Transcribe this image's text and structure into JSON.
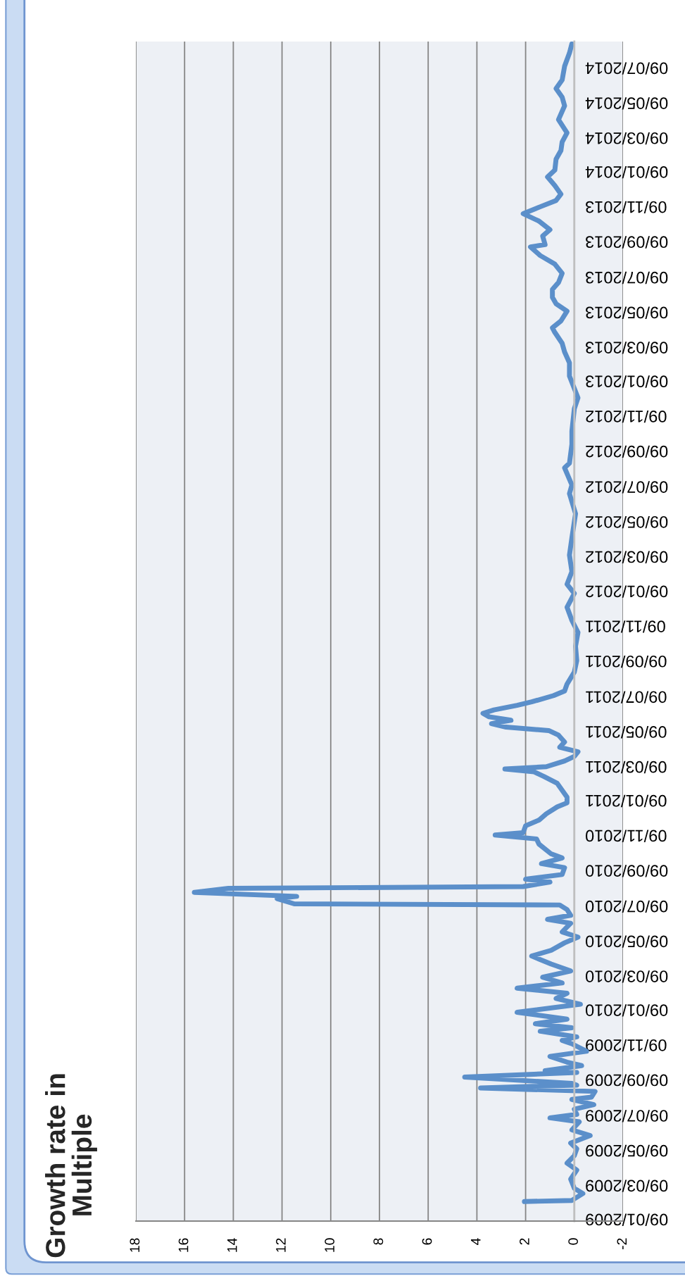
{
  "chart_data": {
    "type": "line",
    "title": "Growth rate in\nMultiple",
    "orientation": "horizontal",
    "color": "#5b8fca",
    "line_style": "solid",
    "grid": "x",
    "xlim": [
      18,
      -2
    ],
    "xticks": [
      18,
      16,
      14,
      12,
      10,
      8,
      6,
      4,
      2,
      0,
      -2
    ],
    "ylim": [
      "2009-01-04",
      "2014-08-22"
    ],
    "yticks": [
      {
        "value": "2009-01-09",
        "label": "09/01/2009"
      },
      {
        "value": "2009-03-09",
        "label": "09/03/2009"
      },
      {
        "value": "2009-05-09",
        "label": "09/05/2009"
      },
      {
        "value": "2009-07-09",
        "label": "09/07/2009"
      },
      {
        "value": "2009-09-09",
        "label": "09/09/2009"
      },
      {
        "value": "2009-11-09",
        "label": "09/11/2009"
      },
      {
        "value": "2010-01-09",
        "label": "09/01/2010"
      },
      {
        "value": "2010-03-09",
        "label": "09/03/2010"
      },
      {
        "value": "2010-05-09",
        "label": "09/05/2010"
      },
      {
        "value": "2010-07-09",
        "label": "09/07/2010"
      },
      {
        "value": "2010-09-09",
        "label": "09/09/2010"
      },
      {
        "value": "2010-11-09",
        "label": "09/11/2010"
      },
      {
        "value": "2011-01-09",
        "label": "09/01/2011"
      },
      {
        "value": "2011-03-09",
        "label": "09/03/2011"
      },
      {
        "value": "2011-05-09",
        "label": "09/05/2011"
      },
      {
        "value": "2011-07-09",
        "label": "09/07/2011"
      },
      {
        "value": "2011-09-09",
        "label": "09/09/2011"
      },
      {
        "value": "2011-11-09",
        "label": "09/11/2011"
      },
      {
        "value": "2012-01-09",
        "label": "09/01/2012"
      },
      {
        "value": "2012-03-09",
        "label": "09/03/2012"
      },
      {
        "value": "2012-05-09",
        "label": "09/05/2012"
      },
      {
        "value": "2012-07-09",
        "label": "09/07/2012"
      },
      {
        "value": "2012-09-09",
        "label": "09/09/2012"
      },
      {
        "value": "2012-11-09",
        "label": "09/11/2012"
      },
      {
        "value": "2013-01-09",
        "label": "09/01/2013"
      },
      {
        "value": "2013-03-09",
        "label": "09/03/2013"
      },
      {
        "value": "2013-05-09",
        "label": "09/05/2013"
      },
      {
        "value": "2013-07-09",
        "label": "09/07/2013"
      },
      {
        "value": "2013-09-09",
        "label": "09/09/2013"
      },
      {
        "value": "2013-11-09",
        "label": "09/11/2013"
      },
      {
        "value": "2014-01-09",
        "label": "09/01/2014"
      },
      {
        "value": "2014-03-09",
        "label": "09/03/2014"
      },
      {
        "value": "2014-05-09",
        "label": "09/05/2014"
      },
      {
        "value": "2014-07-09",
        "label": "09/07/2014"
      }
    ],
    "x": [
      "2009-02-07",
      "2009-02-09",
      "2009-02-21",
      "2009-03-02",
      "2009-03-18",
      "2009-04-03",
      "2009-04-15",
      "2009-04-28",
      "2009-05-10",
      "2009-05-20",
      "2009-06-02",
      "2009-06-12",
      "2009-06-26",
      "2009-07-03",
      "2009-07-09",
      "2009-07-18",
      "2009-07-26",
      "2009-08-04",
      "2009-08-08",
      "2009-08-18",
      "2009-08-24",
      "2009-08-29",
      "2009-09-01",
      "2009-09-12",
      "2009-09-20",
      "2009-09-23",
      "2009-10-02",
      "2009-10-08",
      "2009-10-18",
      "2009-10-27",
      "2009-11-09",
      "2009-11-15",
      "2009-11-21",
      "2009-12-01",
      "2009-12-07",
      "2009-12-14",
      "2009-12-22",
      "2010-01-03",
      "2010-01-17",
      "2010-01-27",
      "2010-02-05",
      "2010-02-14",
      "2010-02-23",
      "2010-03-05",
      "2010-03-16",
      "2010-03-28",
      "2010-04-11",
      "2010-04-21",
      "2010-05-04",
      "2010-05-14",
      "2010-05-23",
      "2010-06-07",
      "2010-06-14",
      "2010-06-21",
      "2010-07-01",
      "2010-07-09",
      "2010-07-11",
      "2010-07-20",
      "2010-07-24",
      "2010-07-31",
      "2010-08-07",
      "2010-08-10",
      "2010-08-18",
      "2010-08-23",
      "2010-08-31",
      "2010-09-12",
      "2010-09-19",
      "2010-09-29",
      "2010-10-06",
      "2010-10-23",
      "2010-11-01",
      "2010-11-08",
      "2010-11-12",
      "2010-11-24",
      "2010-12-04",
      "2010-12-15",
      "2010-12-27",
      "2011-01-03",
      "2011-01-13",
      "2011-01-25",
      "2011-02-06",
      "2011-02-18",
      "2011-02-26",
      "2011-03-03",
      "2011-03-07",
      "2011-03-17",
      "2011-03-25",
      "2011-04-02",
      "2011-04-10",
      "2011-04-19",
      "2011-05-01",
      "2011-05-09",
      "2011-05-15",
      "2011-05-21",
      "2011-05-27",
      "2011-06-02",
      "2011-06-08",
      "2011-06-14",
      "2011-06-22",
      "2011-06-28",
      "2011-07-09",
      "2011-07-17",
      "2011-07-29",
      "2011-08-19",
      "2011-09-08",
      "2011-10-03",
      "2011-10-27",
      "2011-11-17",
      "2011-12-10",
      "2012-01-03",
      "2012-01-19",
      "2012-02-10",
      "2012-03-10",
      "2012-04-09",
      "2012-05-21",
      "2012-06-25",
      "2012-07-10",
      "2012-08-09",
      "2012-08-17",
      "2012-09-19",
      "2012-10-12",
      "2012-11-20",
      "2012-12-09",
      "2013-01-16",
      "2013-02-08",
      "2013-02-27",
      "2013-03-14",
      "2013-04-02",
      "2013-04-10",
      "2013-04-22",
      "2013-05-09",
      "2013-05-22",
      "2013-06-02",
      "2013-06-16",
      "2013-06-28",
      "2013-07-14",
      "2013-07-30",
      "2013-08-14",
      "2013-08-29",
      "2013-09-02",
      "2013-09-17",
      "2013-09-28",
      "2013-10-13",
      "2013-10-26",
      "2013-11-07",
      "2013-11-18",
      "2013-11-29",
      "2013-12-14",
      "2013-12-29",
      "2014-01-10",
      "2014-01-29",
      "2014-02-13",
      "2014-02-28",
      "2014-03-16",
      "2014-04-08",
      "2014-05-02",
      "2014-05-17",
      "2014-06-01",
      "2014-06-16",
      "2014-07-10",
      "2014-08-02",
      "2014-08-18"
    ],
    "values": [
      2.05,
      0.1,
      -0.35,
      0.0,
      0.15,
      -0.1,
      0.3,
      0.0,
      -0.1,
      0.15,
      -0.65,
      0.1,
      -0.2,
      1.0,
      -0.1,
      0.0,
      -0.8,
      0.1,
      -0.7,
      -0.85,
      3.85,
      -0.1,
      0.1,
      4.5,
      -0.1,
      1.2,
      -0.3,
      0.3,
      1.0,
      -0.5,
      0.1,
      0.5,
      -0.1,
      1.4,
      0.1,
      1.6,
      0.3,
      2.35,
      -0.25,
      0.75,
      0.3,
      2.35,
      0.5,
      1.3,
      0.15,
      0.95,
      1.75,
      0.95,
      0.4,
      -0.15,
      0.5,
      0.15,
      1.1,
      0.15,
      0.3,
      0.6,
      11.5,
      12.2,
      11.4,
      15.6,
      14.2,
      2.1,
      1.0,
      2.0,
      0.5,
      0.4,
      1.35,
      0.5,
      0.95,
      1.45,
      1.55,
      3.25,
      2.1,
      2.0,
      1.45,
      1.15,
      0.7,
      0.3,
      0.3,
      0.5,
      0.7,
      1.25,
      1.65,
      2.85,
      1.15,
      0.4,
      0.0,
      -0.15,
      0.6,
      0.4,
      0.65,
      1.05,
      2.8,
      3.4,
      2.6,
      3.5,
      3.75,
      3.3,
      2.35,
      1.75,
      0.85,
      0.4,
      0.3,
      0.0,
      -0.1,
      -0.05,
      -0.15,
      0.1,
      0.3,
      0.0,
      0.3,
      0.1,
      0.2,
      0.1,
      -0.05,
      0.2,
      0.1,
      0.4,
      0.2,
      0.1,
      0.1,
      0.0,
      -0.15,
      0.2,
      0.2,
      0.4,
      0.5,
      0.8,
      0.9,
      0.55,
      0.3,
      0.75,
      0.9,
      0.9,
      0.65,
      0.5,
      0.8,
      1.4,
      1.8,
      1.2,
      1.3,
      1.0,
      1.45,
      2.1,
      1.4,
      0.75,
      0.55,
      0.8,
      1.1,
      0.8,
      0.75,
      0.55,
      0.5,
      0.3,
      0.65,
      0.4,
      0.5,
      0.75,
      0.5,
      0.4,
      0.2,
      0.1
    ]
  }
}
